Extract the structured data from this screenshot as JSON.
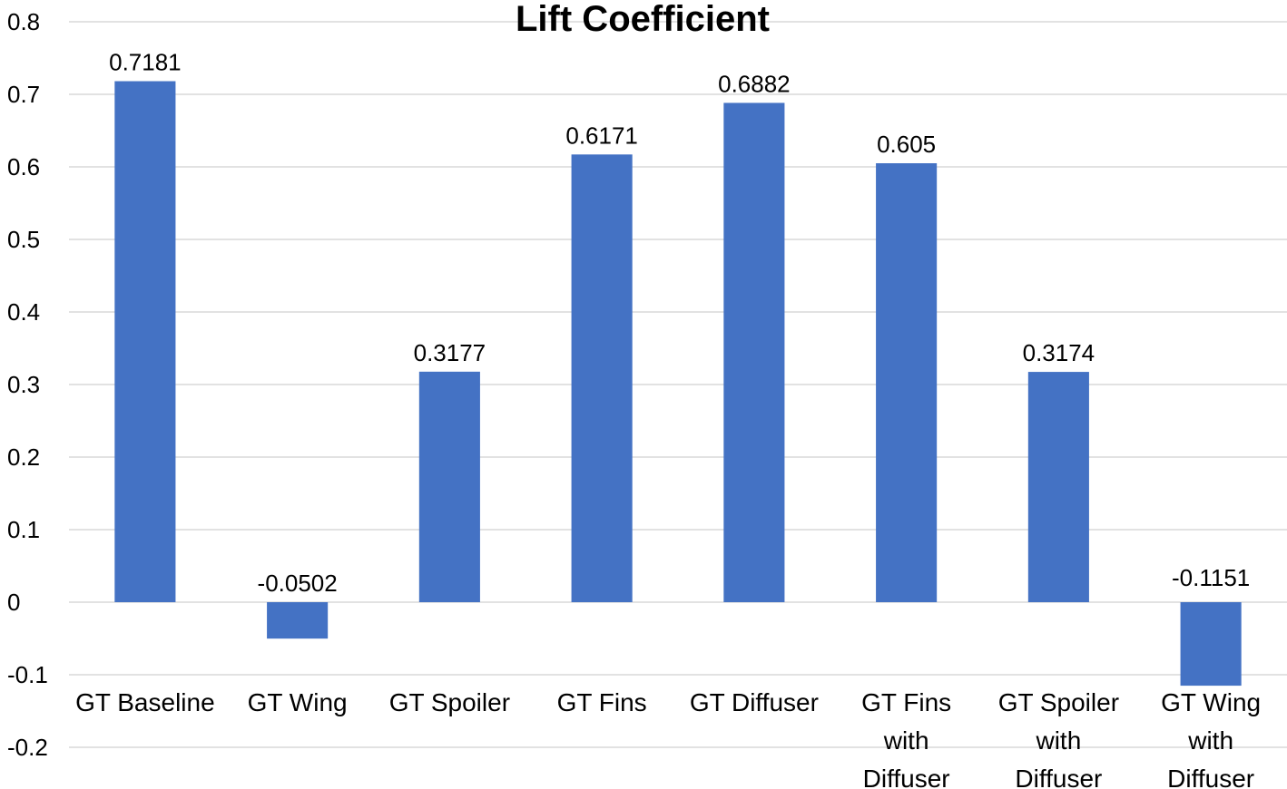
{
  "chart_data": {
    "type": "bar",
    "title": "Lift Coefficient",
    "categories": [
      [
        "GT Baseline"
      ],
      [
        "GT Wing"
      ],
      [
        "GT Spoiler"
      ],
      [
        "GT Fins"
      ],
      [
        "GT Diffuser"
      ],
      [
        "GT Fins",
        "with",
        "Diffuser"
      ],
      [
        "GT Spoiler",
        "with",
        "Diffuser"
      ],
      [
        "GT Wing",
        "with",
        "Diffuser"
      ]
    ],
    "values": [
      0.7181,
      -0.0502,
      0.3177,
      0.6171,
      0.6882,
      0.605,
      0.3174,
      -0.1151
    ],
    "data_labels": [
      "0.7181",
      "-0.0502",
      "0.3177",
      "0.6171",
      "0.6882",
      "0.605",
      "0.3174",
      "-0.1151"
    ],
    "yticks": [
      0.8,
      0.7,
      0.6,
      0.5,
      0.4,
      0.3,
      0.2,
      0.1,
      0,
      -0.1,
      -0.2
    ],
    "ytick_labels": [
      "0.8",
      "0.7",
      "0.6",
      "0.5",
      "0.4",
      "0.3",
      "0.2",
      "0.1",
      "0",
      "-0.1",
      "-0.2"
    ],
    "ylim": [
      -0.2,
      0.8
    ],
    "xlabel": "",
    "ylabel": "",
    "grid": true,
    "bar_color": "#4472C4",
    "grid_color": "#D9D9D9"
  }
}
